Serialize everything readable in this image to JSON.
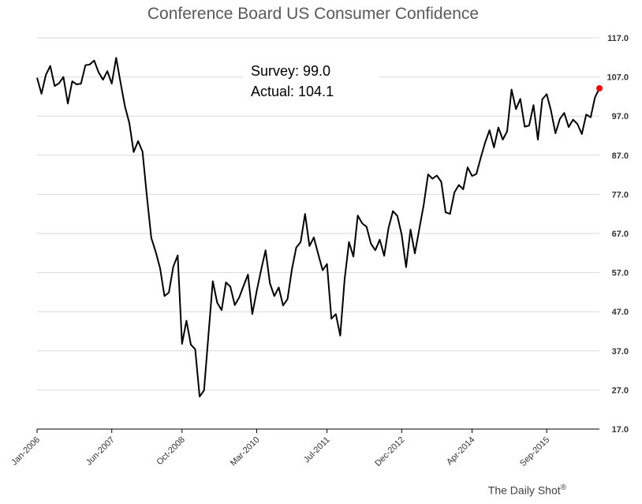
{
  "chart_data": {
    "type": "line",
    "title": "Conference Board US Consumer Confidence",
    "annotation": {
      "survey_label": "Survey: 99.0",
      "actual_label": "Actual:  104.1"
    },
    "ylim": [
      17.0,
      117.0
    ],
    "yticks": [
      "117.0",
      "107.0",
      "97.0",
      "87.0",
      "77.0",
      "67.0",
      "57.0",
      "47.0",
      "37.0",
      "27.0",
      "17.0"
    ],
    "xlim": [
      "2006-01",
      "2016-09"
    ],
    "xticks": [
      {
        "label": "Jan-2006",
        "date": "2006-01"
      },
      {
        "label": "Jun-2007",
        "date": "2007-06"
      },
      {
        "label": "Oct-2008",
        "date": "2008-10"
      },
      {
        "label": "Mar-2010",
        "date": "2010-03"
      },
      {
        "label": "Jul-2011",
        "date": "2011-07"
      },
      {
        "label": "Dec-2012",
        "date": "2012-12"
      },
      {
        "label": "Apr-2014",
        "date": "2014-04"
      },
      {
        "label": "Sep-2015",
        "date": "2015-09"
      }
    ],
    "grid": "horizontal",
    "colors": {
      "line": "#000000",
      "marker": "#ff0000",
      "grid": "#d9d9d9"
    },
    "series": [
      {
        "start": "2006-01",
        "frequency": "monthly",
        "values": [
          106.8,
          102.7,
          107.5,
          109.8,
          104.7,
          105.4,
          107.0,
          100.2,
          105.9,
          105.1,
          105.3,
          110.0,
          110.2,
          111.2,
          108.2,
          106.3,
          108.5,
          105.3,
          111.9,
          105.6,
          99.5,
          95.2,
          87.8,
          90.6,
          87.9,
          76.4,
          65.9,
          62.3,
          58.1,
          51.0,
          51.9,
          58.5,
          61.4,
          38.8,
          44.7,
          38.6,
          37.4,
          25.3,
          26.9,
          40.8,
          54.8,
          49.3,
          47.4,
          54.5,
          53.4,
          48.7,
          50.6,
          53.6,
          56.5,
          46.4,
          52.3,
          57.7,
          62.7,
          54.3,
          51.0,
          53.2,
          48.6,
          50.2,
          57.8,
          63.4,
          64.8,
          72.0,
          63.8,
          66.0,
          61.7,
          57.6,
          59.2,
          45.2,
          46.4,
          40.9,
          55.2,
          64.8,
          61.1,
          71.6,
          69.6,
          68.7,
          64.4,
          62.7,
          65.4,
          61.3,
          68.4,
          72.7,
          71.5,
          66.7,
          58.4,
          68.0,
          61.9,
          68.1,
          74.3,
          82.1,
          81.0,
          81.8,
          80.2,
          72.4,
          72.0,
          77.5,
          79.4,
          78.3,
          83.9,
          81.7,
          82.2,
          86.4,
          90.3,
          93.4,
          89.0,
          94.1,
          91.0,
          93.1,
          103.8,
          98.8,
          101.4,
          94.3,
          94.6,
          99.8,
          91.0,
          101.3,
          102.6,
          98.3,
          92.6,
          96.3,
          97.8,
          94.2,
          96.1,
          95.0,
          92.4,
          97.4,
          96.7,
          101.8,
          104.1
        ],
        "last_point_marker": {
          "value": 104.1,
          "color": "#ff0000"
        }
      }
    ],
    "credit": "The Daily Shot",
    "credit_mark": "®"
  }
}
